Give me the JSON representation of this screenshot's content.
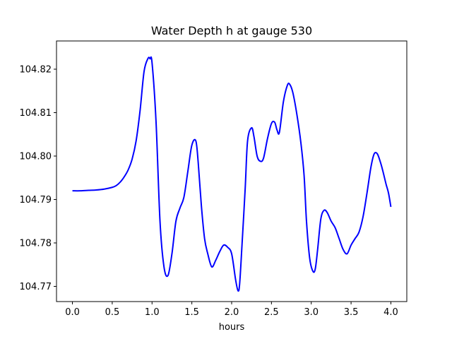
{
  "chart_data": {
    "type": "line",
    "title": "Water Depth h at gauge 530",
    "xlabel": "hours",
    "ylabel": "",
    "xlim": [
      -0.2,
      4.2
    ],
    "ylim": [
      104.7665,
      104.8265
    ],
    "xticks": [
      0.0,
      0.5,
      1.0,
      1.5,
      2.0,
      2.5,
      3.0,
      3.5,
      4.0
    ],
    "xtick_labels": [
      "0.0",
      "0.5",
      "1.0",
      "1.5",
      "2.0",
      "2.5",
      "3.0",
      "3.5",
      "4.0"
    ],
    "yticks": [
      104.77,
      104.78,
      104.79,
      104.8,
      104.81,
      104.82
    ],
    "ytick_labels": [
      "104.77",
      "104.78",
      "104.79",
      "104.80",
      "104.81",
      "104.82"
    ],
    "grid": false,
    "line_color": "#0000ff",
    "series": [
      {
        "x": [
          0.0,
          0.1,
          0.2,
          0.3,
          0.4,
          0.5,
          0.55,
          0.6,
          0.65,
          0.7,
          0.75,
          0.8,
          0.85,
          0.9,
          0.95,
          0.975,
          1.0,
          1.05,
          1.1,
          1.15,
          1.2,
          1.25,
          1.3,
          1.35,
          1.4,
          1.45,
          1.5,
          1.55,
          1.58,
          1.62,
          1.66,
          1.7,
          1.75,
          1.8,
          1.85,
          1.9,
          1.95,
          2.0,
          2.05,
          2.08,
          2.1,
          2.13,
          2.17,
          2.2,
          2.25,
          2.28,
          2.32,
          2.36,
          2.4,
          2.45,
          2.5,
          2.54,
          2.57,
          2.6,
          2.65,
          2.7,
          2.73,
          2.77,
          2.82,
          2.87,
          2.91,
          2.94,
          2.98,
          3.02,
          3.05,
          3.08,
          3.12,
          3.16,
          3.2,
          3.25,
          3.3,
          3.35,
          3.4,
          3.45,
          3.5,
          3.55,
          3.6,
          3.65,
          3.7,
          3.75,
          3.79,
          3.83,
          3.87,
          3.9,
          3.94,
          3.97,
          4.0
        ],
        "y": [
          104.792,
          104.792,
          104.7921,
          104.7922,
          104.7924,
          104.7928,
          104.7932,
          104.794,
          104.7952,
          104.7968,
          104.7993,
          104.8035,
          104.8105,
          104.8195,
          104.8225,
          104.8224,
          104.8215,
          104.808,
          104.785,
          104.7745,
          104.7725,
          104.7775,
          104.785,
          104.788,
          104.7905,
          104.7965,
          104.8025,
          104.8035,
          104.7985,
          104.7885,
          104.781,
          104.7775,
          104.7745,
          104.776,
          104.778,
          104.7795,
          104.779,
          104.7775,
          104.7715,
          104.769,
          104.7705,
          104.7795,
          104.7925,
          104.8035,
          104.8065,
          104.8045,
          104.8,
          104.7988,
          104.7995,
          104.804,
          104.8075,
          104.8078,
          104.806,
          104.8055,
          104.8125,
          104.8163,
          104.8165,
          104.8145,
          104.8095,
          104.803,
          104.7955,
          104.785,
          104.7765,
          104.7735,
          104.774,
          104.7785,
          104.7855,
          104.7875,
          104.787,
          104.785,
          104.7835,
          104.781,
          104.7785,
          104.7775,
          104.7795,
          104.781,
          104.7825,
          104.786,
          104.7915,
          104.7975,
          104.8005,
          104.8005,
          104.7985,
          104.7965,
          104.7935,
          104.7915,
          104.7883
        ]
      }
    ]
  }
}
